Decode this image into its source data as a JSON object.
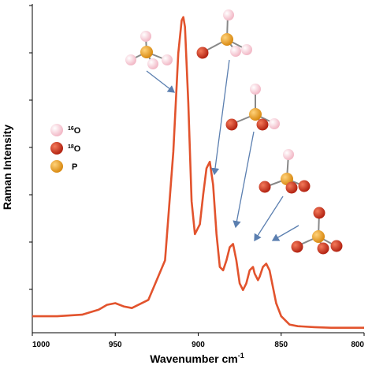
{
  "chart_data": {
    "type": "line",
    "title": "",
    "xlabel": "Wavenumber cm",
    "xlabel_superscript": "-1",
    "ylabel": "Raman Intensity",
    "xlim": [
      1000,
      800
    ],
    "x_ticks": [
      1000,
      950,
      900,
      850,
      800
    ],
    "x_tick_labels": [
      "1000",
      "950",
      "900",
      "850",
      "800"
    ],
    "ylim": [
      0,
      1
    ],
    "y_tick_labels_shown": false,
    "grid": false,
    "line_color": "#e2532d",
    "series": [
      {
        "name": "",
        "x": [
          1000,
          985,
          970,
          960,
          955,
          950,
          945,
          940,
          930,
          920,
          915,
          912,
          910,
          909,
          908,
          906,
          904,
          902,
          899,
          897,
          895,
          893,
          891,
          889,
          887,
          885,
          883,
          881,
          879,
          877,
          875,
          873,
          871,
          869,
          867,
          866,
          864,
          863,
          861,
          859,
          857,
          855,
          853,
          850,
          845,
          840,
          830,
          820,
          810,
          800
        ],
        "y": [
          0.05,
          0.05,
          0.055,
          0.07,
          0.085,
          0.09,
          0.08,
          0.075,
          0.1,
          0.22,
          0.55,
          0.85,
          0.95,
          0.96,
          0.93,
          0.7,
          0.4,
          0.3,
          0.33,
          0.42,
          0.5,
          0.52,
          0.45,
          0.3,
          0.2,
          0.19,
          0.22,
          0.26,
          0.27,
          0.22,
          0.15,
          0.13,
          0.15,
          0.19,
          0.2,
          0.18,
          0.16,
          0.17,
          0.2,
          0.21,
          0.19,
          0.14,
          0.09,
          0.05,
          0.025,
          0.02,
          0.017,
          0.015,
          0.015,
          0.015
        ]
      }
    ],
    "legend": {
      "placement": "left",
      "entries": [
        {
          "isotope": "16",
          "element": "O",
          "color": "#f2b8c6"
        },
        {
          "isotope": "18",
          "element": "O",
          "color": "#cc3320"
        },
        {
          "isotope": "",
          "element": "P",
          "color": "#e89a22"
        }
      ]
    },
    "annotations": [
      {
        "type": "molecule-image",
        "description": "phosphate isotopologue structures",
        "points_to_x": [
          909,
          891,
          878,
          866,
          857
        ]
      }
    ]
  }
}
